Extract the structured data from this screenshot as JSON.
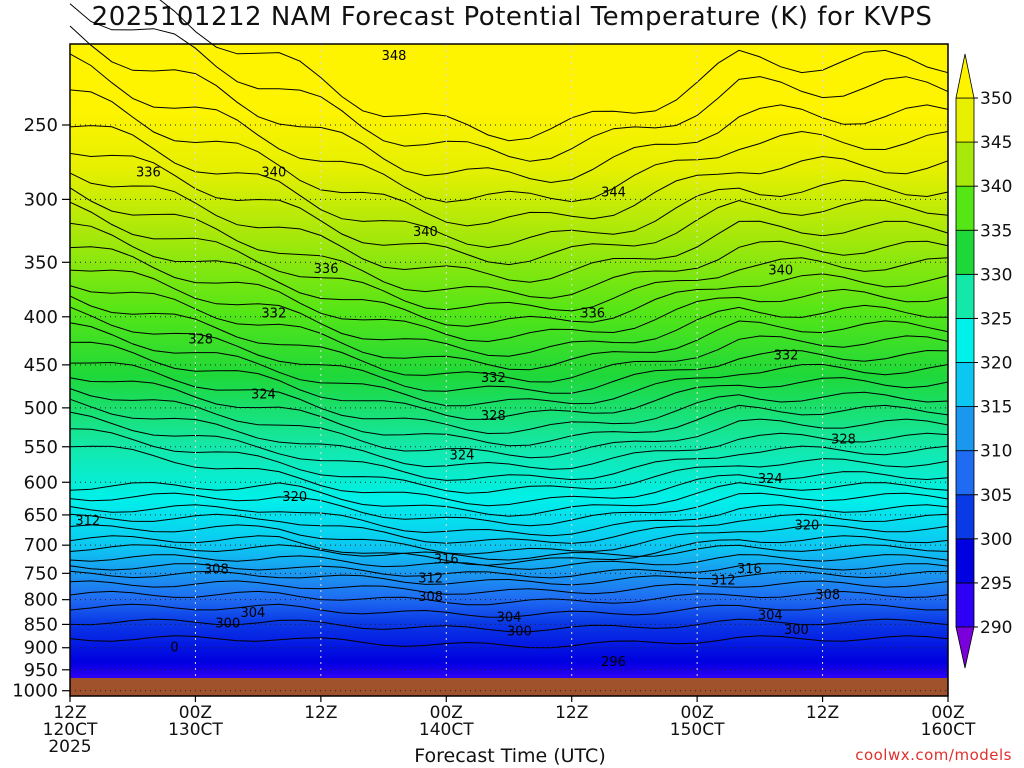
{
  "title": "2025101212 NAM Forecast Potential Temperature (K) for KVPS",
  "credit": "coolwx.com/models",
  "chart_data": {
    "type": "contour",
    "xlabel": "Forecast Time (UTC)",
    "ylabel": "",
    "x_ticks": [
      {
        "hours": 0,
        "line1": "12Z",
        "line2": "120CT",
        "line3": "2025"
      },
      {
        "hours": 12,
        "line1": "00Z",
        "line2": "130CT",
        "line3": ""
      },
      {
        "hours": 24,
        "line1": "12Z",
        "line2": "",
        "line3": ""
      },
      {
        "hours": 36,
        "line1": "00Z",
        "line2": "140CT",
        "line3": ""
      },
      {
        "hours": 48,
        "line1": "12Z",
        "line2": "",
        "line3": ""
      },
      {
        "hours": 60,
        "line1": "00Z",
        "line2": "150CT",
        "line3": ""
      },
      {
        "hours": 72,
        "line1": "12Z",
        "line2": "",
        "line3": ""
      },
      {
        "hours": 84,
        "line1": "00Z",
        "line2": "160CT",
        "line3": ""
      }
    ],
    "xlim": [
      0,
      84
    ],
    "y_ticks": [
      250,
      300,
      350,
      400,
      450,
      500,
      550,
      600,
      650,
      700,
      750,
      800,
      850,
      900,
      950,
      1000
    ],
    "ylim": [
      1013,
      205
    ],
    "y_scale": "log",
    "grid": true,
    "colorbar": {
      "levels": [
        290,
        295,
        300,
        305,
        310,
        315,
        320,
        325,
        330,
        335,
        340,
        345,
        350
      ],
      "colors": [
        "#7a00dc",
        "#2d00f5",
        "#0000e0",
        "#0a3ae6",
        "#1f6cf2",
        "#1a98f0",
        "#0cc7f2",
        "#00f0ea",
        "#14e8a8",
        "#1ed83a",
        "#55e616",
        "#a8e80a",
        "#e6f000",
        "#fff400"
      ]
    },
    "isotherm_labels": [
      {
        "h": 31,
        "p": 211,
        "label": "348"
      },
      {
        "h": 7.5,
        "p": 281,
        "label": "336"
      },
      {
        "h": 19.5,
        "p": 281,
        "label": "340"
      },
      {
        "h": 52,
        "p": 295,
        "label": "344"
      },
      {
        "h": 34,
        "p": 325,
        "label": "340"
      },
      {
        "h": 68,
        "p": 357,
        "label": "340"
      },
      {
        "h": 24.5,
        "p": 356,
        "label": "336"
      },
      {
        "h": 50,
        "p": 397,
        "label": "336"
      },
      {
        "h": 19.5,
        "p": 397,
        "label": "332"
      },
      {
        "h": 12.5,
        "p": 423,
        "label": "328"
      },
      {
        "h": 68.5,
        "p": 440,
        "label": "332"
      },
      {
        "h": 40.5,
        "p": 465,
        "label": "332"
      },
      {
        "h": 18.5,
        "p": 484,
        "label": "324"
      },
      {
        "h": 40.5,
        "p": 510,
        "label": "328"
      },
      {
        "h": 74,
        "p": 540,
        "label": "328"
      },
      {
        "h": 37.5,
        "p": 562,
        "label": "324"
      },
      {
        "h": 67,
        "p": 595,
        "label": "324"
      },
      {
        "h": 21.5,
        "p": 622,
        "label": "320"
      },
      {
        "h": 1.7,
        "p": 660,
        "label": "312"
      },
      {
        "h": 70.5,
        "p": 667,
        "label": "320"
      },
      {
        "h": 36,
        "p": 725,
        "label": "316"
      },
      {
        "h": 65,
        "p": 742,
        "label": "316"
      },
      {
        "h": 14,
        "p": 743,
        "label": "308"
      },
      {
        "h": 34.5,
        "p": 760,
        "label": "312"
      },
      {
        "h": 62.5,
        "p": 763,
        "label": "312"
      },
      {
        "h": 34.5,
        "p": 795,
        "label": "308"
      },
      {
        "h": 72.5,
        "p": 791,
        "label": "308"
      },
      {
        "h": 17.5,
        "p": 827,
        "label": "304"
      },
      {
        "h": 42,
        "p": 836,
        "label": "304"
      },
      {
        "h": 67,
        "p": 832,
        "label": "304"
      },
      {
        "h": 15.1,
        "p": 848,
        "label": "300"
      },
      {
        "h": 43,
        "p": 865,
        "label": "300"
      },
      {
        "h": 69.5,
        "p": 862,
        "label": "300"
      },
      {
        "h": 52,
        "p": 932,
        "label": "296"
      },
      {
        "h": 10,
        "p": 899,
        "label": "0"
      }
    ]
  }
}
